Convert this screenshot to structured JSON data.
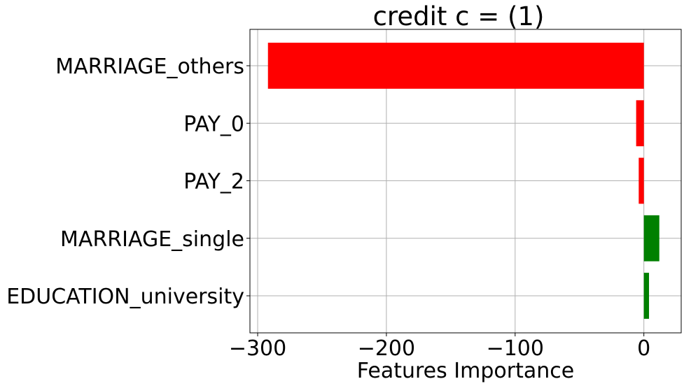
{
  "chart_data": {
    "type": "bar",
    "orientation": "horizontal",
    "title": "credit c = (1)",
    "xlabel": "Features Importance",
    "ylabel": "",
    "categories": [
      "MARRIAGE_others",
      "PAY_0",
      "PAY_2",
      "MARRIAGE_single",
      "EDUCATION_university"
    ],
    "values": [
      -292,
      -6,
      -4,
      12,
      4
    ],
    "colors": [
      "#ff0000",
      "#ff0000",
      "#ff0000",
      "#008000",
      "#008000"
    ],
    "xlim": [
      -306,
      29
    ],
    "xticks": [
      -300,
      -200,
      -100,
      0
    ],
    "xtick_labels": [
      "−300",
      "−200",
      "−100",
      "0"
    ],
    "grid": true
  }
}
